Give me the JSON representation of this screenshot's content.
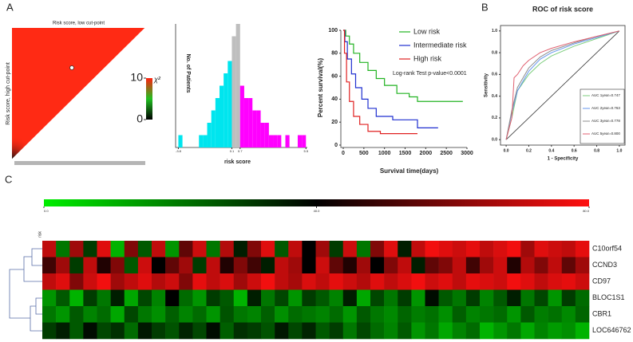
{
  "panel_labels": [
    "A",
    "B",
    "C"
  ],
  "chart_data": [
    {
      "type": "xtile",
      "title": "Risk score, low cut-point",
      "ylabel": "Risk score, high cut-point",
      "colorbar_label": "χ²",
      "clim": [
        0,
        10
      ],
      "cticks": [
        10,
        0
      ],
      "color": "#ff2a14"
    },
    {
      "type": "histogram",
      "ylabel": "No. of Patients",
      "xlabel": "risk score",
      "xlim": [
        -4,
        5.6
      ],
      "xticks": [
        {
          "value": -3.8,
          "label": "-3.8"
        },
        0.1,
        0.7,
        5.5
      ],
      "ylim": [
        0,
        10
      ],
      "series": [
        {
          "color": "#00e5ee",
          "bins": [
            -3.8,
            -3.5,
            -3.2,
            -2.9,
            -2.6,
            -2.3,
            -2.0,
            -1.7,
            -1.4,
            -1.1,
            -0.8,
            -0.5,
            -0.2,
            0.1
          ],
          "values": [
            1,
            0,
            0,
            0,
            0,
            1,
            1,
            2,
            3,
            4,
            5,
            6,
            7
          ]
        },
        {
          "color": "#bebebe",
          "bins": [
            0.1,
            0.4,
            0.7
          ],
          "values": [
            9,
            10
          ]
        },
        {
          "color": "#ff00ff",
          "bins": [
            0.7,
            1.0,
            1.3,
            1.6,
            1.9,
            2.2,
            2.5,
            2.8,
            3.1,
            3.4,
            3.7,
            4.0,
            4.3,
            4.6,
            4.9,
            5.2,
            5.5
          ],
          "values": [
            5,
            4,
            4,
            3,
            3,
            2,
            2,
            1,
            1,
            1,
            0,
            1,
            0,
            0,
            1,
            1
          ]
        }
      ]
    },
    {
      "type": "line",
      "ylabel": "Percent survival(%)",
      "xlabel": "Survival time(days)",
      "annotation": "Log-rank Test p-value<0.0001",
      "legend": "upper right",
      "xlim": [
        0,
        3000
      ],
      "xticks": [
        0,
        500,
        1000,
        1500,
        2000,
        2500,
        3000
      ],
      "ylim": [
        0,
        100
      ],
      "yticks": [
        0,
        20,
        40,
        60,
        80,
        100
      ],
      "series": [
        {
          "name": "Low risk",
          "color": "#22b322",
          "x": [
            0,
            60,
            60,
            150,
            150,
            250,
            250,
            400,
            400,
            600,
            600,
            800,
            800,
            1000,
            1000,
            1300,
            1300,
            1600,
            1600,
            1800,
            1800,
            2900
          ],
          "values": [
            100,
            100,
            95,
            95,
            88,
            88,
            80,
            80,
            72,
            72,
            65,
            65,
            58,
            58,
            52,
            52,
            45,
            45,
            42,
            42,
            38,
            38
          ]
        },
        {
          "name": "Intermediate risk",
          "color": "#1f2fd0",
          "x": [
            0,
            40,
            40,
            100,
            100,
            200,
            200,
            300,
            300,
            450,
            450,
            600,
            600,
            800,
            800,
            1200,
            1200,
            1800,
            1800,
            2300
          ],
          "values": [
            100,
            100,
            90,
            90,
            75,
            75,
            62,
            62,
            50,
            50,
            40,
            40,
            32,
            32,
            25,
            25,
            22,
            22,
            15,
            15
          ]
        },
        {
          "name": "High risk",
          "color": "#e02020",
          "x": [
            0,
            30,
            30,
            80,
            80,
            150,
            150,
            250,
            250,
            400,
            400,
            600,
            600,
            900,
            900,
            1800
          ],
          "values": [
            100,
            100,
            80,
            80,
            55,
            55,
            38,
            38,
            25,
            25,
            18,
            18,
            12,
            12,
            10,
            10
          ]
        }
      ]
    },
    {
      "type": "line",
      "title": "ROC of risk score",
      "xlabel": "1 - Specificity",
      "ylabel": "Sensitivity",
      "legend": "lower right",
      "reference": true,
      "xlim": [
        -0.05,
        1.05
      ],
      "xticks": [
        {
          "value": 0,
          "label": "0.0"
        },
        0.2,
        0.4,
        0.6,
        0.8,
        {
          "value": 1,
          "label": "1.0"
        }
      ],
      "ylim": [
        -0.05,
        1.05
      ],
      "yticks": [
        {
          "value": 0,
          "label": "0.0"
        },
        0.2,
        0.4,
        0.6,
        0.8,
        {
          "value": 1,
          "label": "1.0"
        }
      ],
      "series": [
        {
          "name": "AUC 1year=0.747",
          "color": "#7ccd7c",
          "x": [
            0,
            0.05,
            0.1,
            0.2,
            0.3,
            0.4,
            0.6,
            0.8,
            1.0
          ],
          "values": [
            0,
            0.2,
            0.45,
            0.6,
            0.7,
            0.77,
            0.86,
            0.93,
            1.0
          ]
        },
        {
          "name": "AUC 2year=0.763",
          "color": "#6495ed",
          "x": [
            0,
            0.05,
            0.1,
            0.2,
            0.3,
            0.4,
            0.6,
            0.8,
            1.0
          ],
          "values": [
            0,
            0.25,
            0.45,
            0.63,
            0.74,
            0.8,
            0.88,
            0.94,
            1.0
          ]
        },
        {
          "name": "AUC 3year=0.778",
          "color": "#8c8c8c",
          "x": [
            0,
            0.05,
            0.1,
            0.2,
            0.3,
            0.4,
            0.6,
            0.8,
            1.0
          ],
          "values": [
            0,
            0.27,
            0.48,
            0.66,
            0.76,
            0.82,
            0.89,
            0.95,
            1.0
          ]
        },
        {
          "name": "AUC 5year=0.800",
          "color": "#e06070",
          "x": [
            0,
            0.05,
            0.07,
            0.1,
            0.15,
            0.2,
            0.3,
            0.4,
            0.6,
            0.8,
            1.0
          ],
          "values": [
            0,
            0.2,
            0.57,
            0.6,
            0.68,
            0.73,
            0.8,
            0.84,
            0.9,
            0.95,
            1.0
          ]
        }
      ]
    },
    {
      "type": "heatmap",
      "column_label": "risk",
      "clim": [
        0,
        80
      ],
      "cticks": [
        {
          "value": 0,
          "label": "0.0"
        },
        {
          "value": 40,
          "label": "40.0"
        },
        {
          "value": 80,
          "label": "80.0"
        }
      ],
      "colors": [
        "#00ee00",
        "#000000",
        "#ff1010"
      ],
      "rows": [
        "C10orf54",
        "CCND3",
        "CD97",
        "BLOC1S1",
        "CBR1",
        "LOC646762"
      ],
      "values": [
        [
          70,
          20,
          65,
          30,
          75,
          10,
          60,
          25,
          70,
          15,
          55,
          72,
          20,
          68,
          35,
          60,
          75,
          25,
          70,
          40,
          65,
          30,
          72,
          20,
          60,
          75,
          35,
          70,
          78,
          75,
          72,
          76,
          70,
          74,
          78,
          65,
          75,
          72,
          70,
          76
        ],
        [
          50,
          65,
          30,
          70,
          45,
          60,
          25,
          72,
          40,
          55,
          65,
          30,
          70,
          45,
          60,
          50,
          35,
          70,
          65,
          40,
          72,
          55,
          45,
          65,
          40,
          60,
          70,
          35,
          55,
          60,
          70,
          50,
          65,
          72,
          45,
          68,
          60,
          70,
          55,
          65
        ],
        [
          70,
          75,
          60,
          72,
          78,
          65,
          70,
          75,
          68,
          72,
          60,
          76,
          70,
          74,
          65,
          72,
          78,
          70,
          66,
          74,
          70,
          76,
          72,
          68,
          75,
          70,
          74,
          78,
          72,
          75,
          70,
          76,
          74,
          72,
          78,
          75,
          70,
          74,
          76,
          72
        ],
        [
          15,
          25,
          10,
          30,
          20,
          35,
          12,
          28,
          18,
          40,
          22,
          15,
          30,
          25,
          10,
          35,
          20,
          28,
          15,
          30,
          25,
          18,
          35,
          12,
          28,
          20,
          30,
          15,
          38,
          25,
          20,
          30,
          18,
          25,
          35,
          20,
          28,
          15,
          30,
          22
        ],
        [
          20,
          15,
          25,
          18,
          22,
          12,
          28,
          20,
          16,
          24,
          18,
          22,
          15,
          26,
          20,
          18,
          24,
          16,
          22,
          20,
          18,
          22,
          15,
          25,
          20,
          17,
          23,
          19,
          21,
          16,
          24,
          18,
          20,
          22,
          15,
          25,
          19,
          21,
          17,
          23
        ],
        [
          30,
          35,
          25,
          38,
          28,
          32,
          22,
          36,
          30,
          26,
          34,
          28,
          38,
          24,
          32,
          30,
          26,
          36,
          28,
          34,
          25,
          30,
          20,
          28,
          22,
          18,
          25,
          15,
          20,
          12,
          18,
          22,
          10,
          15,
          20,
          12,
          18,
          14,
          16,
          10
        ]
      ]
    }
  ]
}
